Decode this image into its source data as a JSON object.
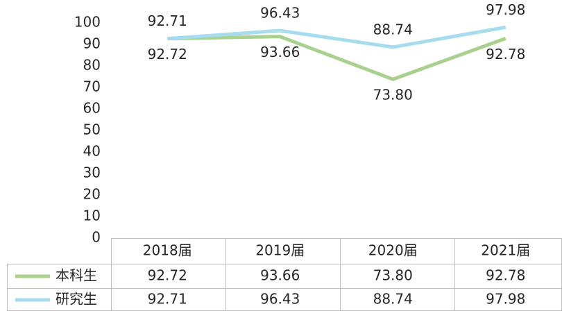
{
  "chart_data": {
    "type": "line",
    "categories": [
      "2018届",
      "2019届",
      "2020届",
      "2021届"
    ],
    "series": [
      {
        "name": "本科生",
        "color": "#a9d18e",
        "values": [
          92.72,
          93.66,
          73.8,
          92.78
        ],
        "value_labels": [
          "92.72",
          "93.66",
          "73.80",
          "92.78"
        ]
      },
      {
        "name": "研究生",
        "color": "#a5dcf0",
        "values": [
          92.71,
          96.43,
          88.74,
          97.98
        ],
        "value_labels": [
          "92.71",
          "96.43",
          "88.74",
          "97.98"
        ]
      }
    ],
    "ylim": [
      0,
      100
    ],
    "yticks": [
      0,
      10,
      20,
      30,
      40,
      50,
      60,
      70,
      80,
      90,
      100
    ]
  }
}
